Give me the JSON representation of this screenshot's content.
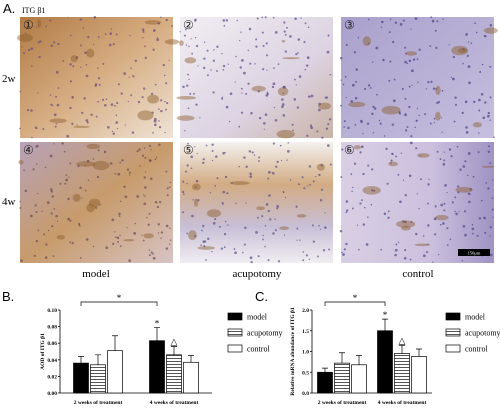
{
  "panel_a": {
    "label": "A.",
    "stain": "ITG β1",
    "rows": [
      "2w",
      "4w"
    ],
    "panels": [
      "①",
      "②",
      "③",
      "④",
      "⑤",
      "⑥"
    ],
    "columns": [
      "model",
      "acupotomy",
      "control"
    ],
    "scale_bar": "150μm"
  },
  "chart_data": [
    {
      "type": "bar",
      "label": "B.",
      "y_label": "AOD of ITG β1",
      "categories": [
        "2 weeks of treatment",
        "4 weeks of treatment"
      ],
      "series": [
        {
          "name": "model",
          "color": "#000000",
          "values": [
            0.036,
            0.063
          ],
          "errors": [
            0.008,
            0.016
          ]
        },
        {
          "name": "acupotomy",
          "color": "#ffffff",
          "hatch": true,
          "values": [
            0.034,
            0.046
          ],
          "errors": [
            0.012,
            0.01
          ]
        },
        {
          "name": "control",
          "color": "#ffffff",
          "values": [
            0.051,
            0.037
          ],
          "errors": [
            0.018,
            0.008
          ]
        }
      ],
      "ylim": [
        0,
        0.1
      ],
      "yticks": [
        {
          "value": 0,
          "label": "0.00"
        },
        0.02,
        0.04,
        0.06,
        0.08,
        {
          "value": 0.1,
          "label": "0.10"
        }
      ],
      "annotations": [
        {
          "text": "*"
        },
        {
          "text": "*"
        },
        {
          "text": "△"
        }
      ]
    },
    {
      "type": "bar",
      "label": "C.",
      "y_label": "Relative mRNA abundance of ITG β1",
      "categories": [
        "2 weeks of treatment",
        "4 weeks of treatment"
      ],
      "series": [
        {
          "name": "model",
          "color": "#000000",
          "values": [
            0.5,
            1.5
          ],
          "errors": [
            0.1,
            0.28
          ]
        },
        {
          "name": "acupotomy",
          "color": "#ffffff",
          "hatch": true,
          "values": [
            0.72,
            0.95
          ],
          "errors": [
            0.25,
            0.2
          ]
        },
        {
          "name": "control",
          "color": "#ffffff",
          "values": [
            0.68,
            0.88
          ],
          "errors": [
            0.22,
            0.18
          ]
        }
      ],
      "ylim": [
        0,
        2
      ],
      "yticks": [
        {
          "value": 0,
          "label": "0.0"
        },
        0.5,
        {
          "value": 1,
          "label": "1.0"
        },
        1.5,
        {
          "value": 2,
          "label": "2.0"
        }
      ],
      "annotations": [
        {
          "text": "*"
        },
        {
          "text": "*"
        },
        {
          "text": "△"
        }
      ]
    }
  ]
}
